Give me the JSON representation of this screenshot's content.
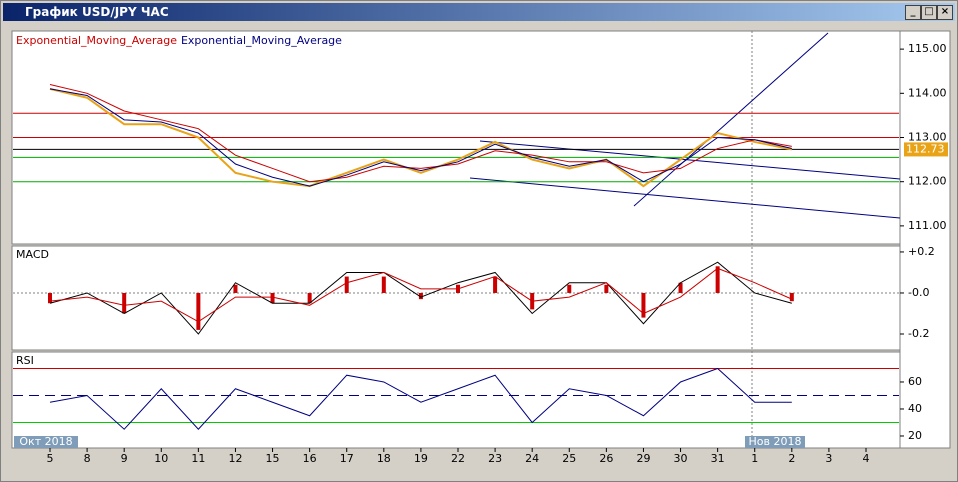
{
  "window": {
    "title": "График USD/JPY ЧАС"
  },
  "chart_data": {
    "type": "indicator-chart",
    "categories": [
      "5",
      "8",
      "9",
      "10",
      "11",
      "12",
      "15",
      "16",
      "17",
      "18",
      "19",
      "22",
      "23",
      "24",
      "25",
      "26",
      "29",
      "30",
      "31",
      "1",
      "2",
      "3",
      "4"
    ],
    "period_labels": [
      "Окт 2018",
      "Нов 2018"
    ],
    "last_price": 112.73,
    "panels": [
      {
        "ylim": [
          110.59,
          115.41
        ],
        "yticks": [
          {
            "value": 111,
            "label": "111.00"
          },
          {
            "value": 112,
            "label": "112.00"
          },
          {
            "value": 113,
            "label": "113.00"
          },
          {
            "value": 114,
            "label": "114.00"
          },
          {
            "value": 115,
            "label": "115.00"
          }
        ],
        "levels": [
          {
            "value": 113.55,
            "color": "#cc0000"
          },
          {
            "value": 113.0,
            "color": "#cc0000"
          },
          {
            "value": 112.73,
            "color": "#000000"
          },
          {
            "value": 112.55,
            "color": "#00aa00"
          },
          {
            "value": 112.0,
            "color": "#00aa00"
          }
        ]
      },
      {
        "title": "MACD",
        "ylim": [
          -0.278,
          0.229
        ],
        "yticks": [
          {
            "value": 0.2,
            "label": "+0.2"
          },
          {
            "value": 0,
            "label": "-0.0"
          },
          {
            "value": -0.2,
            "label": "-0.2"
          }
        ],
        "levels": []
      },
      {
        "title": "RSI",
        "ylim": [
          11.1,
          82.2
        ],
        "yticks": [
          20,
          40,
          60
        ],
        "levels": [
          {
            "value": 70,
            "color": "#cc0000"
          },
          {
            "value": 50,
            "color": "#000080"
          },
          {
            "value": 30,
            "color": "#00cc00"
          }
        ]
      }
    ],
    "series": [
      {
        "panel": 0,
        "style": "line",
        "color": "#e8a317",
        "values": [
          114.1,
          113.9,
          113.3,
          113.3,
          113.0,
          112.2,
          112.0,
          111.9,
          112.2,
          112.5,
          112.2,
          112.5,
          112.9,
          112.5,
          112.3,
          112.5,
          111.9,
          112.5,
          113.1,
          112.9,
          112.73,
          null,
          null
        ]
      },
      {
        "panel": 0,
        "style": "line",
        "name": "Exponential_Moving_Average",
        "color": "#cc0000",
        "values": [
          114.2,
          114.0,
          113.6,
          113.4,
          113.2,
          112.6,
          112.3,
          112.0,
          112.1,
          112.35,
          112.3,
          112.4,
          112.7,
          112.6,
          112.45,
          112.45,
          112.2,
          112.3,
          112.75,
          112.95,
          112.8,
          null,
          null
        ]
      },
      {
        "panel": 0,
        "style": "line",
        "name": "Exponential_Moving_Average",
        "color": "#000080",
        "values": [
          114.1,
          113.95,
          113.4,
          113.35,
          113.1,
          112.4,
          112.1,
          111.9,
          112.15,
          112.45,
          112.25,
          112.45,
          112.85,
          112.55,
          112.35,
          112.5,
          112.0,
          112.4,
          113.0,
          112.95,
          112.75,
          null,
          null
        ]
      },
      {
        "panel": 1,
        "style": "bar",
        "color": "#cc0000",
        "values": [
          -0.05,
          0.0,
          -0.1,
          0.0,
          -0.18,
          0.04,
          -0.05,
          -0.05,
          0.08,
          0.08,
          -0.03,
          0.04,
          0.08,
          -0.08,
          0.04,
          0.04,
          -0.12,
          0.05,
          0.13,
          0.0,
          -0.04,
          null,
          null
        ]
      },
      {
        "panel": 1,
        "style": "line",
        "color": "#000000",
        "values": [
          -0.05,
          0.0,
          -0.1,
          0.0,
          -0.2,
          0.05,
          -0.05,
          -0.05,
          0.1,
          0.1,
          -0.02,
          0.05,
          0.1,
          -0.1,
          0.05,
          0.05,
          -0.15,
          0.05,
          0.15,
          0.0,
          -0.05,
          null,
          null
        ]
      },
      {
        "panel": 1,
        "style": "line",
        "color": "#cc0000",
        "values": [
          -0.04,
          -0.02,
          -0.06,
          -0.04,
          -0.14,
          -0.02,
          -0.02,
          -0.06,
          0.05,
          0.1,
          0.02,
          0.02,
          0.08,
          -0.04,
          -0.02,
          0.05,
          -0.1,
          -0.02,
          0.12,
          0.05,
          -0.03,
          null,
          null
        ]
      },
      {
        "panel": 2,
        "style": "line",
        "color": "#000080",
        "values": [
          45,
          50,
          25,
          55,
          25,
          55,
          45,
          35,
          65,
          60,
          45,
          55,
          65,
          30,
          55,
          50,
          35,
          60,
          70,
          45,
          45,
          null,
          null
        ]
      }
    ]
  }
}
